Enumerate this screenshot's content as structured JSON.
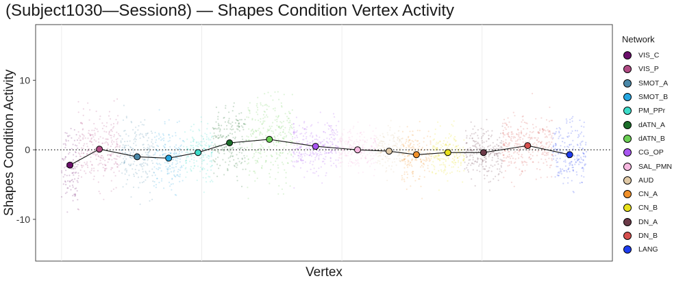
{
  "chart_data": {
    "type": "scatter",
    "title": "(Subject1030—Session8) — Shapes Condition Vertex Activity",
    "xlabel": "Vertex",
    "ylabel": "Shapes Condition Activity",
    "ylim": [
      -16,
      18
    ],
    "y_ticks": [
      -10,
      0,
      10
    ],
    "reference_line_y": 0,
    "legend_title": "Network",
    "legend_position": "right",
    "networks": [
      {
        "name": "VIS_C",
        "color": "#6B0F6B",
        "mean": -2.2,
        "spread": 2.8,
        "width": 0.4
      },
      {
        "name": "VIS_P",
        "color": "#B04B84",
        "mean": 0.1,
        "spread": 2.5,
        "width": 1.0
      },
      {
        "name": "SMOT_A",
        "color": "#4A88A8",
        "mean": -1.0,
        "spread": 2.4,
        "width": 0.8
      },
      {
        "name": "SMOT_B",
        "color": "#26A6E0",
        "mean": -1.2,
        "spread": 2.2,
        "width": 0.7
      },
      {
        "name": "PM_PPr",
        "color": "#3DDCC9",
        "mean": -0.4,
        "spread": 2.0,
        "width": 0.7
      },
      {
        "name": "dATN_A",
        "color": "#1C6E2A",
        "mean": 1.0,
        "spread": 2.4,
        "width": 0.8
      },
      {
        "name": "dATN_B",
        "color": "#6BCF54",
        "mean": 1.5,
        "spread": 3.0,
        "width": 1.1
      },
      {
        "name": "CG_OP",
        "color": "#A855F0",
        "mean": 0.5,
        "spread": 1.8,
        "width": 1.1
      },
      {
        "name": "SAL_PMN",
        "color": "#F6B8E0",
        "mean": 0.0,
        "spread": 1.6,
        "width": 0.9
      },
      {
        "name": "AUD",
        "color": "#E0C9A6",
        "mean": -0.2,
        "spread": 1.4,
        "width": 0.6
      },
      {
        "name": "CN_A",
        "color": "#F0902A",
        "mean": -0.7,
        "spread": 1.9,
        "width": 0.7
      },
      {
        "name": "CN_B",
        "color": "#E8E11C",
        "mean": -0.4,
        "spread": 1.6,
        "width": 0.8
      },
      {
        "name": "DN_A",
        "color": "#6B3A48",
        "mean": -0.4,
        "spread": 1.8,
        "width": 0.9
      },
      {
        "name": "DN_B",
        "color": "#D6504E",
        "mean": 0.6,
        "spread": 2.1,
        "width": 1.2
      },
      {
        "name": "LANG",
        "color": "#1E3CF0",
        "mean": -0.7,
        "spread": 2.2,
        "width": 0.8
      }
    ]
  }
}
